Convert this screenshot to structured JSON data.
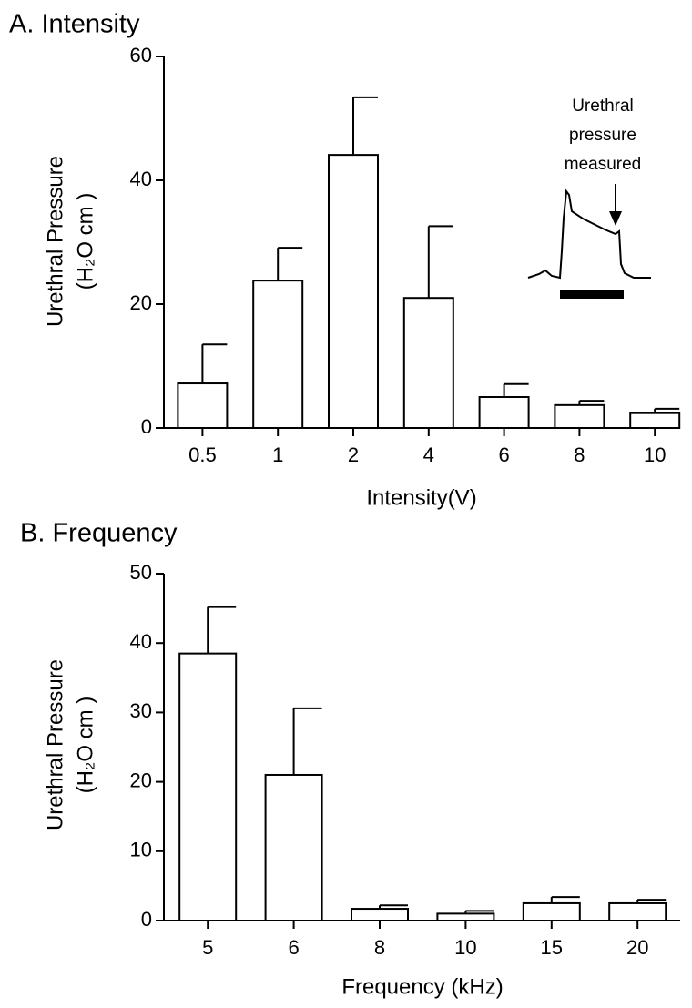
{
  "chart_data": [
    {
      "type": "bar",
      "title": "A. Intensity",
      "xlabel": "Intensity(V)",
      "ylabel": [
        "Urethral Pressure",
        "(H₂O cm )"
      ],
      "categories": [
        "0.5",
        "1",
        "2",
        "4",
        "6",
        "8",
        "10"
      ],
      "values": [
        7.2,
        23.8,
        44.1,
        21.0,
        5.0,
        3.7,
        2.4
      ],
      "errors": [
        6.3,
        5.3,
        9.3,
        11.6,
        2.1,
        0.7,
        0.7
      ],
      "color": "#ffffff",
      "ylim": [
        0,
        60
      ],
      "yticks": [
        0,
        20,
        40,
        60
      ],
      "annotation": [
        "Urethral",
        "pressure",
        "measured"
      ]
    },
    {
      "type": "bar",
      "title": "B. Frequency",
      "xlabel": "Frequency (kHz)",
      "ylabel": [
        "Urethral Pressure",
        "(H₂O cm )"
      ],
      "categories": [
        "5",
        "6",
        "8",
        "10",
        "15",
        "20"
      ],
      "values": [
        38.5,
        21.0,
        1.7,
        1.0,
        2.5,
        2.5
      ],
      "errors": [
        6.7,
        9.6,
        0.5,
        0.4,
        0.9,
        0.5
      ],
      "color": "#ffffff",
      "ylim": [
        0,
        50
      ],
      "yticks": [
        0,
        10,
        20,
        30,
        40,
        50
      ]
    }
  ]
}
